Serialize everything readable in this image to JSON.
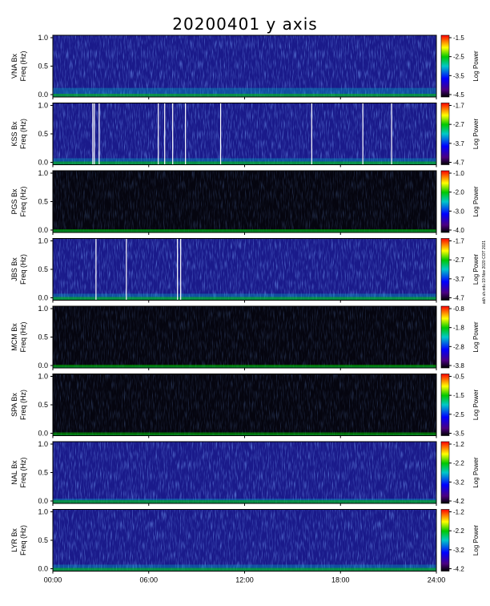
{
  "chart_data": {
    "type": "heatmap",
    "title": "20200401 y axis",
    "stamp": "ad/r.uh.edu 19 Nov 2020 COT 2021",
    "x_ticks": [
      "00:00",
      "06:00",
      "12:00",
      "18:00",
      "24:00"
    ],
    "x_range_hours": [
      0,
      24
    ],
    "y_ticks": [
      "0.0",
      "0.5",
      "1.0"
    ],
    "ylim": [
      0,
      1.0
    ],
    "colorbar_label": "Log Power",
    "panels": [
      {
        "station": "VNA",
        "ylabel": "VNA Bx",
        "ylabel2": "Freq (Hz)",
        "clim": [
          "-1.5",
          "-2.5",
          "-3.5",
          "-4.5"
        ],
        "level": 0.42,
        "night": [],
        "lines": [],
        "dark": false
      },
      {
        "station": "KSS",
        "ylabel": "KSS Bx",
        "ylabel2": "Freq (Hz)",
        "clim": [
          "-1.7",
          "-2.7",
          "-3.7",
          "-4.7"
        ],
        "level": 0.3,
        "night": [],
        "lines": [
          2.5,
          2.6,
          2.9,
          6.6,
          7.0,
          7.5,
          8.3,
          10.5,
          16.2,
          19.4,
          21.2
        ],
        "dark": false
      },
      {
        "station": "PGS",
        "ylabel": "PGS Bx",
        "ylabel2": "Freq (Hz)",
        "clim": [
          "-1.0",
          "-2.0",
          "-3.0",
          "-4.0"
        ],
        "level": 0.1,
        "night": [],
        "lines": [],
        "dark": true
      },
      {
        "station": "JBS",
        "ylabel": "JBS Bx",
        "ylabel2": "Freq (Hz)",
        "clim": [
          "-1.7",
          "-2.7",
          "-3.7",
          "-4.7"
        ],
        "level": 0.3,
        "night": [],
        "lines": [
          2.7,
          4.6,
          7.8,
          8.0
        ],
        "dark": false
      },
      {
        "station": "MCM",
        "ylabel": "MCM Bx",
        "ylabel2": "Freq (Hz)",
        "clim": [
          "-0.8",
          "-1.8",
          "-2.8",
          "-3.8"
        ],
        "level": 0.08,
        "night": [],
        "lines": [],
        "dark": true
      },
      {
        "station": "SPA",
        "ylabel": "SPA Bx",
        "ylabel2": "Freq (Hz)",
        "clim": [
          "-0.5",
          "-1.5",
          "-2.5",
          "-3.5"
        ],
        "level": 0.05,
        "night": [],
        "lines": [],
        "dark": true
      },
      {
        "station": "NAL",
        "ylabel": "NAL Bx",
        "ylabel2": "Freq (Hz)",
        "clim": [
          "-1.2",
          "-2.2",
          "-3.2",
          "-4.2"
        ],
        "level": 0.22,
        "night": [],
        "lines": [],
        "dark": false
      },
      {
        "station": "LYR",
        "ylabel": "LYR Bx",
        "ylabel2": "Freq (Hz)",
        "clim": [
          "-1.2",
          "-2.2",
          "-3.2",
          "-4.2"
        ],
        "level": 0.3,
        "night": [],
        "lines": [],
        "dark": false
      }
    ]
  }
}
